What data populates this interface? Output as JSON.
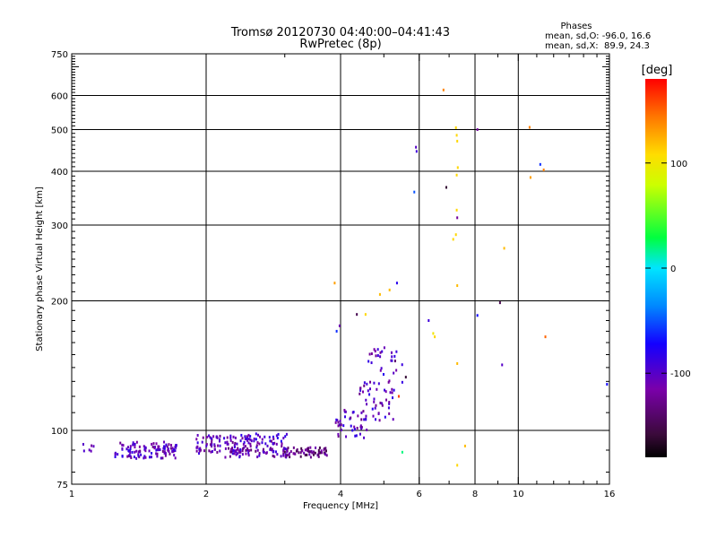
{
  "chart_data": {
    "type": "scatter",
    "title": "Tromsø 20120730 04:40:00–04:41:43",
    "subtitle": "RwPretec (8p)",
    "xlabel": "Frequency [MHz]",
    "ylabel": "Stationary phase Virtual Height [km]",
    "x_scale": "log",
    "y_scale": "log",
    "xlim": [
      1,
      16
    ],
    "ylim": [
      75,
      750
    ],
    "x_ticks": [
      1,
      2,
      4,
      6,
      8,
      10,
      16
    ],
    "x_tick_labels": [
      "1",
      "2",
      "4",
      "6",
      "8",
      "10",
      "16"
    ],
    "x_grid": [
      2,
      4,
      6,
      8,
      10
    ],
    "y_ticks": [
      75,
      100,
      200,
      300,
      400,
      500,
      600,
      750
    ],
    "y_tick_labels": [
      "75",
      "100",
      "200",
      "300",
      "400",
      "500",
      "600",
      "750"
    ],
    "y_grid": [
      100,
      200,
      300,
      400,
      500,
      600
    ],
    "grid": true,
    "phases_title": "Phases",
    "phases_line1": "mean, sd,O: -96.0, 16.6",
    "phases_line2": "mean, sd,X:  89.9, 24.3",
    "colorbar": {
      "label": "[deg]",
      "range": [
        -180,
        180
      ],
      "ticks": [
        100,
        0,
        -100
      ],
      "tick_labels": [
        "100",
        "0",
        "-100"
      ]
    },
    "clusters": [
      {
        "x_range": [
          1.05,
          1.12
        ],
        "y_center": 91,
        "y_spread": 1.5,
        "phase": -110,
        "count": 6
      },
      {
        "x_range": [
          1.25,
          1.72
        ],
        "y_center": 90,
        "y_spread": 2.5,
        "phase": -105,
        "count": 110
      },
      {
        "x_range": [
          1.9,
          2.45
        ],
        "y_center": 93,
        "y_spread": 3.0,
        "phase": -105,
        "count": 80
      },
      {
        "x_range": [
          2.2,
          3.1
        ],
        "y_center": 89,
        "y_spread": 1.5,
        "phase": -110,
        "count": 60
      },
      {
        "x_range": [
          2.45,
          3.05
        ],
        "y_center": 95,
        "y_spread": 2.0,
        "phase": -100,
        "count": 45
      },
      {
        "x_range": [
          3.0,
          3.75
        ],
        "y_center": 89,
        "y_spread": 1.5,
        "phase": -130,
        "count": 60
      },
      {
        "x_range": [
          3.9,
          4.6
        ],
        "y_center": 104,
        "y_spread": 5.0,
        "phase": -105,
        "count": 40
      },
      {
        "x_range": [
          4.4,
          5.3
        ],
        "y_center": 118,
        "y_spread": 8.0,
        "phase": -105,
        "count": 45
      },
      {
        "x_range": [
          4.6,
          5.5
        ],
        "y_center": 140,
        "y_spread": 10.0,
        "phase": -100,
        "count": 30
      }
    ],
    "points": [
      {
        "x": 3.88,
        "y": 220,
        "phase": 130
      },
      {
        "x": 3.92,
        "y": 170,
        "phase": -60
      },
      {
        "x": 3.98,
        "y": 175,
        "phase": -110
      },
      {
        "x": 4.35,
        "y": 186,
        "phase": -150
      },
      {
        "x": 4.55,
        "y": 186,
        "phase": 110
      },
      {
        "x": 4.9,
        "y": 207,
        "phase": 120
      },
      {
        "x": 5.15,
        "y": 212,
        "phase": 120
      },
      {
        "x": 5.35,
        "y": 220,
        "phase": -80
      },
      {
        "x": 5.9,
        "y": 455,
        "phase": -100
      },
      {
        "x": 5.92,
        "y": 445,
        "phase": -90
      },
      {
        "x": 5.85,
        "y": 358,
        "phase": -50
      },
      {
        "x": 6.3,
        "y": 180,
        "phase": -90
      },
      {
        "x": 6.45,
        "y": 168,
        "phase": 100
      },
      {
        "x": 6.5,
        "y": 165,
        "phase": 110
      },
      {
        "x": 6.8,
        "y": 618,
        "phase": 140
      },
      {
        "x": 6.9,
        "y": 367,
        "phase": -160
      },
      {
        "x": 7.25,
        "y": 505,
        "phase": 110
      },
      {
        "x": 7.28,
        "y": 485,
        "phase": 110
      },
      {
        "x": 7.3,
        "y": 470,
        "phase": 110
      },
      {
        "x": 7.32,
        "y": 408,
        "phase": 110
      },
      {
        "x": 7.28,
        "y": 392,
        "phase": 110
      },
      {
        "x": 7.28,
        "y": 325,
        "phase": 110
      },
      {
        "x": 7.3,
        "y": 312,
        "phase": -120
      },
      {
        "x": 7.25,
        "y": 285,
        "phase": 110
      },
      {
        "x": 7.15,
        "y": 278,
        "phase": 110
      },
      {
        "x": 7.3,
        "y": 217,
        "phase": 120
      },
      {
        "x": 7.3,
        "y": 143,
        "phase": 120
      },
      {
        "x": 7.6,
        "y": 92,
        "phase": 120
      },
      {
        "x": 7.3,
        "y": 83,
        "phase": 110
      },
      {
        "x": 5.5,
        "y": 89,
        "phase": 20
      },
      {
        "x": 8.1,
        "y": 500,
        "phase": -120
      },
      {
        "x": 8.1,
        "y": 185,
        "phase": -70
      },
      {
        "x": 9.1,
        "y": 198,
        "phase": -150
      },
      {
        "x": 9.2,
        "y": 142,
        "phase": -100
      },
      {
        "x": 9.3,
        "y": 265,
        "phase": 120
      },
      {
        "x": 10.6,
        "y": 506,
        "phase": 140
      },
      {
        "x": 10.65,
        "y": 387,
        "phase": 130
      },
      {
        "x": 11.2,
        "y": 415,
        "phase": -60
      },
      {
        "x": 11.4,
        "y": 403,
        "phase": 140
      },
      {
        "x": 11.5,
        "y": 165,
        "phase": 150
      },
      {
        "x": 15.8,
        "y": 128,
        "phase": -70
      },
      {
        "x": 5.6,
        "y": 133,
        "phase": -160
      },
      {
        "x": 5.4,
        "y": 120,
        "phase": 160
      },
      {
        "x": 5.3,
        "y": 145,
        "phase": -140
      }
    ]
  }
}
